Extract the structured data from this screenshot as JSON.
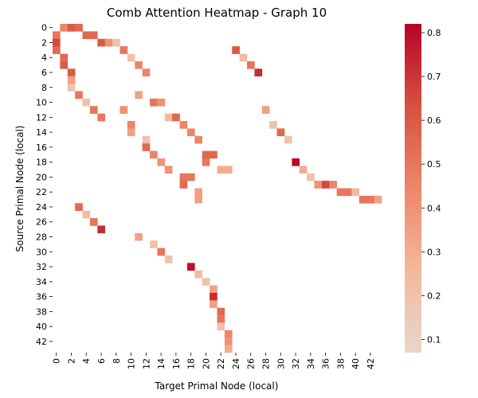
{
  "chart_data": {
    "type": "heatmap",
    "title": "Comb Attention Heatmap - Graph 10",
    "xlabel": "Target Primal Node (local)",
    "ylabel": "Source Primal Node (local)",
    "n_rows": 44,
    "n_cols": 44,
    "x_ticks": [
      "0",
      "2",
      "4",
      "6",
      "8",
      "10",
      "12",
      "14",
      "16",
      "18",
      "20",
      "22",
      "24",
      "26",
      "28",
      "30",
      "32",
      "34",
      "36",
      "38",
      "40",
      "42"
    ],
    "y_ticks": [
      "0",
      "2",
      "4",
      "6",
      "8",
      "10",
      "12",
      "14",
      "16",
      "18",
      "20",
      "22",
      "24",
      "26",
      "28",
      "30",
      "32",
      "34",
      "36",
      "38",
      "40",
      "42"
    ],
    "colorbar": {
      "min": 0.07,
      "max": 0.82,
      "ticks": [
        "0.1",
        "0.2",
        "0.3",
        "0.4",
        "0.5",
        "0.6",
        "0.7",
        "0.8"
      ],
      "colormap": "coolwarm (upper half)"
    },
    "cells": [
      [
        0,
        1,
        0.45
      ],
      [
        0,
        2,
        0.6
      ],
      [
        0,
        3,
        0.55
      ],
      [
        1,
        0,
        0.5
      ],
      [
        1,
        4,
        0.55
      ],
      [
        1,
        5,
        0.55
      ],
      [
        2,
        0,
        0.65
      ],
      [
        2,
        6,
        0.6
      ],
      [
        2,
        7,
        0.4
      ],
      [
        2,
        8,
        0.2
      ],
      [
        3,
        0,
        0.55
      ],
      [
        3,
        9,
        0.5
      ],
      [
        3,
        24,
        0.6
      ],
      [
        4,
        1,
        0.55
      ],
      [
        4,
        10,
        0.2
      ],
      [
        4,
        25,
        0.25
      ],
      [
        5,
        1,
        0.6
      ],
      [
        5,
        11,
        0.45
      ],
      [
        5,
        26,
        0.5
      ],
      [
        6,
        2,
        0.6
      ],
      [
        6,
        12,
        0.45
      ],
      [
        6,
        27,
        0.72
      ],
      [
        7,
        2,
        0.35
      ],
      [
        8,
        2,
        0.2
      ],
      [
        9,
        3,
        0.5
      ],
      [
        9,
        11,
        0.35
      ],
      [
        10,
        4,
        0.2
      ],
      [
        10,
        13,
        0.5
      ],
      [
        10,
        14,
        0.4
      ],
      [
        11,
        5,
        0.5
      ],
      [
        11,
        9,
        0.4
      ],
      [
        11,
        28,
        0.35
      ],
      [
        12,
        6,
        0.5
      ],
      [
        12,
        15,
        0.25
      ],
      [
        12,
        16,
        0.55
      ],
      [
        13,
        10,
        0.45
      ],
      [
        13,
        17,
        0.45
      ],
      [
        13,
        29,
        0.2
      ],
      [
        14,
        10,
        0.35
      ],
      [
        14,
        18,
        0.45
      ],
      [
        14,
        30,
        0.55
      ],
      [
        15,
        12,
        0.2
      ],
      [
        15,
        19,
        0.45
      ],
      [
        15,
        31,
        0.2
      ],
      [
        16,
        12,
        0.55
      ],
      [
        17,
        13,
        0.45
      ],
      [
        17,
        20,
        0.55
      ],
      [
        17,
        21,
        0.55
      ],
      [
        18,
        14,
        0.4
      ],
      [
        18,
        20,
        0.5
      ],
      [
        18,
        32,
        0.8
      ],
      [
        19,
        15,
        0.4
      ],
      [
        19,
        22,
        0.3
      ],
      [
        19,
        23,
        0.3
      ],
      [
        19,
        33,
        0.3
      ],
      [
        20,
        17,
        0.5
      ],
      [
        20,
        18,
        0.5
      ],
      [
        20,
        34,
        0.2
      ],
      [
        21,
        17,
        0.55
      ],
      [
        21,
        35,
        0.4
      ],
      [
        21,
        36,
        0.65
      ],
      [
        21,
        37,
        0.45
      ],
      [
        22,
        19,
        0.35
      ],
      [
        22,
        38,
        0.5
      ],
      [
        22,
        39,
        0.5
      ],
      [
        22,
        40,
        0.25
      ],
      [
        23,
        19,
        0.35
      ],
      [
        23,
        41,
        0.5
      ],
      [
        23,
        42,
        0.5
      ],
      [
        23,
        43,
        0.35
      ],
      [
        24,
        3,
        0.55
      ],
      [
        25,
        4,
        0.25
      ],
      [
        26,
        5,
        0.5
      ],
      [
        27,
        6,
        0.72
      ],
      [
        28,
        11,
        0.35
      ],
      [
        29,
        13,
        0.2
      ],
      [
        30,
        14,
        0.5
      ],
      [
        31,
        15,
        0.2
      ],
      [
        32,
        18,
        0.78
      ],
      [
        33,
        19,
        0.25
      ],
      [
        34,
        20,
        0.2
      ],
      [
        35,
        21,
        0.35
      ],
      [
        36,
        21,
        0.72
      ],
      [
        37,
        21,
        0.35
      ],
      [
        38,
        22,
        0.55
      ],
      [
        39,
        22,
        0.5
      ],
      [
        40,
        22,
        0.2
      ],
      [
        41,
        23,
        0.45
      ],
      [
        42,
        23,
        0.4
      ],
      [
        43,
        23,
        0.3
      ]
    ]
  }
}
